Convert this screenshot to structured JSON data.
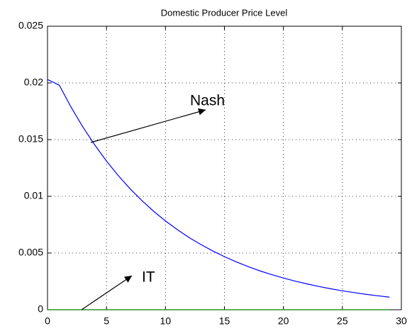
{
  "chart_data": {
    "type": "line",
    "title": "Domestic Producer Price Level",
    "x": [
      0,
      1,
      2,
      3,
      4,
      5,
      6,
      7,
      8,
      9,
      10,
      11,
      12,
      13,
      14,
      15,
      16,
      17,
      18,
      19,
      20,
      21,
      22,
      23,
      24,
      25,
      26,
      27,
      28,
      29
    ],
    "series": [
      {
        "name": "Nash",
        "color": "#0000ff",
        "values": [
          0.0203,
          0.0198,
          0.01786,
          0.01611,
          0.01454,
          0.01311,
          0.01183,
          0.01067,
          0.00963,
          0.00868,
          0.00783,
          0.00707,
          0.00637,
          0.00575,
          0.00519,
          0.00468,
          0.00422,
          0.00381,
          0.00343,
          0.0031,
          0.0028,
          0.00252,
          0.00228,
          0.00205,
          0.00185,
          0.00167,
          0.00151,
          0.00136,
          0.00123,
          0.00111
        ]
      },
      {
        "name": "IT",
        "color": "#008000",
        "values": [
          0,
          0,
          0,
          0,
          0,
          0,
          0,
          0,
          0,
          0,
          0,
          0,
          0,
          0,
          0,
          0,
          0,
          0,
          0,
          0,
          0,
          0,
          0,
          0,
          0,
          0,
          0,
          0,
          0,
          0
        ]
      }
    ],
    "xlim": [
      0,
      30
    ],
    "xticks": [
      0,
      5,
      10,
      15,
      20,
      25,
      30
    ],
    "ylim": [
      0,
      0.025
    ],
    "yticks": [
      0,
      0.005,
      0.01,
      0.015,
      0.02,
      0.025
    ],
    "grid": true
  }
}
